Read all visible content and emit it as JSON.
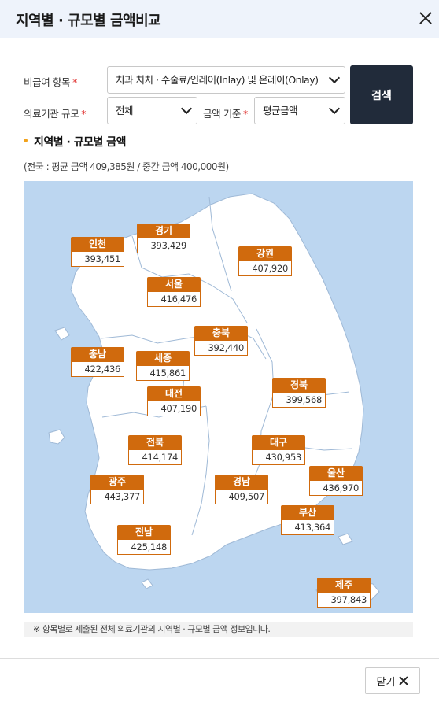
{
  "dialog": {
    "title": "지역별 · 규모별 금액비교"
  },
  "form": {
    "item_label": "비급여 항목",
    "item_value": "치과 치치 · 수술료/인레이(Inlay) 및 온레이(Onlay)",
    "scale_label": "의료기관 규모",
    "scale_value": "전체",
    "basis_label": "금액 기준",
    "basis_value": "평균금액",
    "required_mark": "*",
    "search_label": "검색"
  },
  "section": {
    "title": "지역별 · 규모별 금액",
    "summary": "(전국 : 평균 금액 409,385원 / 중간 금액 400,000원)"
  },
  "regions": {
    "incheon": {
      "name": "인천",
      "value": "393,451"
    },
    "gyeonggi": {
      "name": "경기",
      "value": "393,429"
    },
    "gangwon": {
      "name": "강원",
      "value": "407,920"
    },
    "seoul": {
      "name": "서울",
      "value": "416,476"
    },
    "chungbuk": {
      "name": "충북",
      "value": "392,440"
    },
    "chungnam": {
      "name": "충남",
      "value": "422,436"
    },
    "sejong": {
      "name": "세종",
      "value": "415,861"
    },
    "gyeongbuk": {
      "name": "경북",
      "value": "399,568"
    },
    "daejeon": {
      "name": "대전",
      "value": "407,190"
    },
    "jeonbuk": {
      "name": "전북",
      "value": "414,174"
    },
    "daegu": {
      "name": "대구",
      "value": "430,953"
    },
    "ulsan": {
      "name": "울산",
      "value": "436,970"
    },
    "gwangju": {
      "name": "광주",
      "value": "443,377"
    },
    "gyeongnam": {
      "name": "경남",
      "value": "409,507"
    },
    "busan": {
      "name": "부산",
      "value": "413,364"
    },
    "jeonnam": {
      "name": "전남",
      "value": "425,148"
    },
    "jeju": {
      "name": "제주",
      "value": "397,843"
    }
  },
  "note": "※ 항목별로 제출된 전체 의료기관의 지역별 · 규모별 금액 정보입니다.",
  "footer": {
    "close_label": "닫기"
  },
  "colors": {
    "header_bg": "#eef3fb",
    "search_btn": "#212b3a",
    "region_tag": "#d06a0d",
    "map_sea": "#bcd6f0",
    "map_land": "#ffffff",
    "accent_dot": "#f2a21b"
  }
}
